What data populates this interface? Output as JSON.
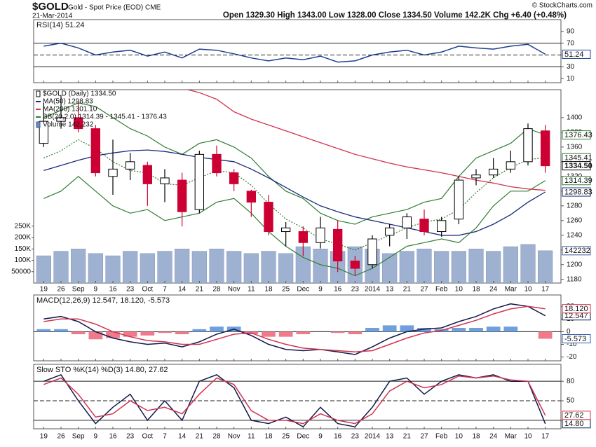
{
  "header": {
    "symbol": "$GOLD",
    "description": "Gold - Spot Price (EOD) CME",
    "date": "21-Mar-2014",
    "quote": "Open 1329.30  High 1343.00  Low 1328.00  Close 1334.50  Volume 142.2K  Chg +6.40 (+0.48%)",
    "credit": "© StockCharts.com"
  },
  "chart_data": [
    {
      "type": "line",
      "title": "RSI(14) 51.24",
      "ylim": [
        3,
        110
      ],
      "yticks": [
        10,
        30,
        50,
        70,
        90
      ],
      "hlines": [
        30,
        70
      ],
      "dashed_hlines": [
        50
      ],
      "series": [
        {
          "color": "#1f3f8f",
          "values": [
            65,
            70,
            62,
            50,
            55,
            58,
            48,
            55,
            45,
            60,
            58,
            52,
            45,
            40,
            45,
            42,
            48,
            38,
            40,
            50,
            55,
            58,
            50,
            55,
            65,
            62,
            60,
            65,
            68,
            51.24
          ],
          "tag": "51.24"
        }
      ]
    },
    {
      "type": "candlestick",
      "name": "$GOLD (Daily) 1334.50",
      "categories": [
        "19",
        "26",
        "Sep",
        "9",
        "16",
        "23",
        "Oct",
        "7",
        "14",
        "21",
        "28",
        "Nov",
        "11",
        "18",
        "25",
        "Dec",
        "9",
        "16",
        "23",
        "2014",
        "13",
        "21",
        "27",
        "Feb",
        "10",
        "18",
        "24",
        "Mar",
        "10",
        "17"
      ],
      "open": [
        1365,
        1395,
        1400,
        1385,
        1320,
        1330,
        1335,
        1310,
        1315,
        1275,
        1350,
        1325,
        1300,
        1285,
        1245,
        1245,
        1230,
        1248,
        1205,
        1200,
        1240,
        1250,
        1262,
        1245,
        1262,
        1318,
        1322,
        1330,
        1340,
        1382
      ],
      "high": [
        1420,
        1430,
        1420,
        1390,
        1370,
        1352,
        1340,
        1330,
        1325,
        1355,
        1362,
        1330,
        1302,
        1295,
        1258,
        1252,
        1265,
        1260,
        1212,
        1240,
        1255,
        1270,
        1275,
        1265,
        1320,
        1330,
        1345,
        1355,
        1392,
        1390
      ],
      "low": [
        1360,
        1385,
        1380,
        1320,
        1295,
        1315,
        1280,
        1285,
        1252,
        1270,
        1320,
        1300,
        1265,
        1240,
        1225,
        1212,
        1222,
        1190,
        1185,
        1195,
        1225,
        1235,
        1240,
        1238,
        1255,
        1308,
        1318,
        1325,
        1335,
        1325
      ],
      "close": [
        1395,
        1400,
        1385,
        1325,
        1330,
        1340,
        1310,
        1318,
        1272,
        1350,
        1325,
        1310,
        1285,
        1245,
        1250,
        1230,
        1250,
        1205,
        1195,
        1235,
        1250,
        1265,
        1245,
        1260,
        1315,
        1322,
        1330,
        1340,
        1385,
        1334.5
      ],
      "close_tag": "1334.50",
      "up_color": "#000000",
      "down_color": "#cc0033",
      "ylim": [
        1175,
        1438
      ],
      "yticks": [
        1180,
        1200,
        1220,
        1240,
        1260,
        1280,
        1300,
        1320,
        1340,
        1360,
        1380,
        1400
      ],
      "overlays": [
        {
          "name": "MA(50) 1298.83",
          "color": "#1a2a7a",
          "values": [
            1328,
            1335,
            1342,
            1348,
            1352,
            1355,
            1356,
            1354,
            1350,
            1346,
            1343,
            1340,
            1330,
            1318,
            1305,
            1292,
            1280,
            1272,
            1265,
            1260,
            1255,
            1250,
            1245,
            1240,
            1240,
            1245,
            1255,
            1268,
            1285,
            1298.83
          ],
          "tag": "1298.83"
        },
        {
          "name": "MA(200) 1301.10",
          "color": "#d0344e",
          "values": [
            1480,
            1475,
            1470,
            1465,
            1460,
            1455,
            1450,
            1445,
            1440,
            1434,
            1425,
            1408,
            1398,
            1390,
            1382,
            1374,
            1366,
            1358,
            1350,
            1344,
            1338,
            1333,
            1329,
            1325,
            1320,
            1315,
            1311,
            1306,
            1303,
            1301.1
          ]
        }
      ],
      "bands": {
        "name": "BB(20,2.0) 1314.39 - 1345.41 - 1376.43",
        "color": "#2e7d32",
        "upper": [
          1400,
          1410,
          1420,
          1415,
          1400,
          1385,
          1375,
          1360,
          1350,
          1365,
          1370,
          1360,
          1345,
          1320,
          1300,
          1290,
          1270,
          1260,
          1255,
          1265,
          1270,
          1275,
          1285,
          1290,
          1320,
          1345,
          1355,
          1365,
          1385,
          1376.43
        ],
        "middle": [
          1345,
          1355,
          1370,
          1358,
          1340,
          1328,
          1325,
          1310,
          1308,
          1318,
          1328,
          1325,
          1308,
          1283,
          1262,
          1250,
          1235,
          1228,
          1220,
          1230,
          1240,
          1250,
          1258,
          1262,
          1275,
          1298,
          1318,
          1332,
          1343,
          1345.41
        ],
        "lower": [
          1290,
          1300,
          1320,
          1300,
          1280,
          1270,
          1275,
          1260,
          1265,
          1270,
          1285,
          1290,
          1270,
          1245,
          1225,
          1210,
          1200,
          1195,
          1185,
          1195,
          1210,
          1225,
          1230,
          1235,
          1230,
          1250,
          1280,
          1300,
          1300,
          1314.39
        ],
        "upper_tag": "1376.43",
        "middle_tag": "1345.41",
        "lower_tag": "1314.39"
      },
      "volume": {
        "name": "Volume 142,232",
        "color": "#9fb1d0",
        "values": [
          120000,
          140000,
          150000,
          130000,
          120000,
          140000,
          130000,
          140000,
          150000,
          140000,
          150000,
          140000,
          130000,
          140000,
          130000,
          160000,
          150000,
          140000,
          160000,
          150000,
          130000,
          140000,
          150000,
          140000,
          140000,
          150000,
          140000,
          160000,
          170000,
          142232
        ],
        "tag": "142232",
        "y2lim": [
          0,
          850000
        ],
        "y2ticks": [
          50000,
          {
            "value": 100000,
            "label": "100K"
          },
          {
            "value": 150000,
            "label": "150K"
          },
          {
            "value": 200000,
            "label": "200K"
          },
          {
            "value": 250000,
            "label": "250K"
          }
        ]
      }
    },
    {
      "type": "macd",
      "title": "MACD(12,26,9) 12.547, 18.120, -5.573",
      "ylim": [
        -23,
        29
      ],
      "yticks": [
        -20,
        -10,
        0,
        10,
        20
      ],
      "hlines": [
        0
      ],
      "series": [
        {
          "color": "#111a4a",
          "values": [
            10,
            12,
            8,
            0,
            -5,
            -8,
            -10,
            -9,
            -12,
            -8,
            -2,
            2,
            -3,
            -10,
            -14,
            -15,
            -14,
            -16,
            -18,
            -12,
            -5,
            0,
            2,
            3,
            8,
            12,
            18,
            22,
            20,
            12.547
          ],
          "tag": "12.547"
        },
        {
          "color": "#d0344e",
          "values": [
            8,
            10,
            10,
            6,
            0,
            -4,
            -7,
            -8,
            -10,
            -10,
            -6,
            -2,
            -1,
            -6,
            -10,
            -13,
            -14,
            -15,
            -16,
            -15,
            -10,
            -5,
            -1,
            1,
            5,
            9,
            14,
            18,
            20,
            18.12
          ],
          "tag": "18.120"
        }
      ],
      "histogram": {
        "color_up": "#6f9fdc",
        "color_down": "#f07a8c",
        "values": [
          2,
          2,
          -2,
          -6,
          -5,
          -4,
          -3,
          -1,
          -2,
          2,
          4,
          4,
          -2,
          -4,
          -4,
          -2,
          0,
          -1,
          -2,
          3,
          5,
          5,
          3,
          2,
          3,
          3,
          4,
          4,
          0,
          -5.573
        ],
        "tag": "-5.573"
      }
    },
    {
      "type": "line",
      "title": "Slow STO %K(14) %D(3) 14.80, 27.62",
      "ylim": [
        7,
        106
      ],
      "yticks": [
        20,
        50,
        80
      ],
      "hlines": [
        20,
        80
      ],
      "dashed_hlines": [
        50
      ],
      "series": [
        {
          "color": "#111a4a",
          "values": [
            80,
            90,
            50,
            15,
            40,
            60,
            20,
            50,
            20,
            80,
            90,
            70,
            20,
            15,
            25,
            10,
            40,
            15,
            10,
            40,
            80,
            85,
            60,
            80,
            90,
            85,
            90,
            80,
            80,
            14.8
          ],
          "tag": "14.80"
        },
        {
          "color": "#d0344e",
          "values": [
            75,
            85,
            60,
            25,
            30,
            50,
            35,
            40,
            30,
            60,
            85,
            75,
            35,
            20,
            20,
            15,
            30,
            20,
            15,
            30,
            65,
            80,
            70,
            75,
            88,
            85,
            88,
            82,
            80,
            27.62
          ],
          "tag": "27.62"
        }
      ]
    }
  ]
}
